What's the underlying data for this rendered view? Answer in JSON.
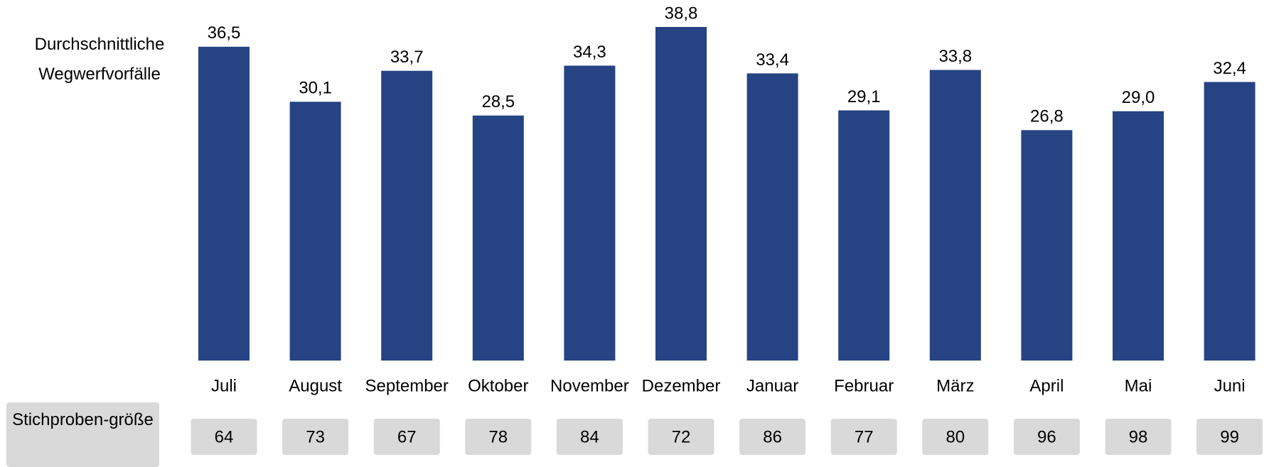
{
  "chart_data": {
    "type": "bar",
    "y_label": "Durchschnittliche Wegwerfvorfälle",
    "categories": [
      "Juli",
      "August",
      "September",
      "Oktober",
      "November",
      "Dezember",
      "Januar",
      "Februar",
      "März",
      "April",
      "Mai",
      "Juni"
    ],
    "values": [
      36.5,
      30.1,
      33.7,
      28.5,
      34.3,
      38.8,
      33.4,
      29.1,
      33.8,
      26.8,
      29.0,
      32.4
    ],
    "value_labels": [
      "36,5",
      "30,1",
      "33,7",
      "28,5",
      "34,3",
      "38,8",
      "33,4",
      "29,1",
      "33,8",
      "26,8",
      "29,0",
      "32,4"
    ],
    "color": "#264384",
    "sample_size_label": "Stichproben-größe",
    "sample_sizes": [
      64,
      73,
      67,
      78,
      84,
      72,
      86,
      77,
      80,
      96,
      98,
      99
    ]
  }
}
